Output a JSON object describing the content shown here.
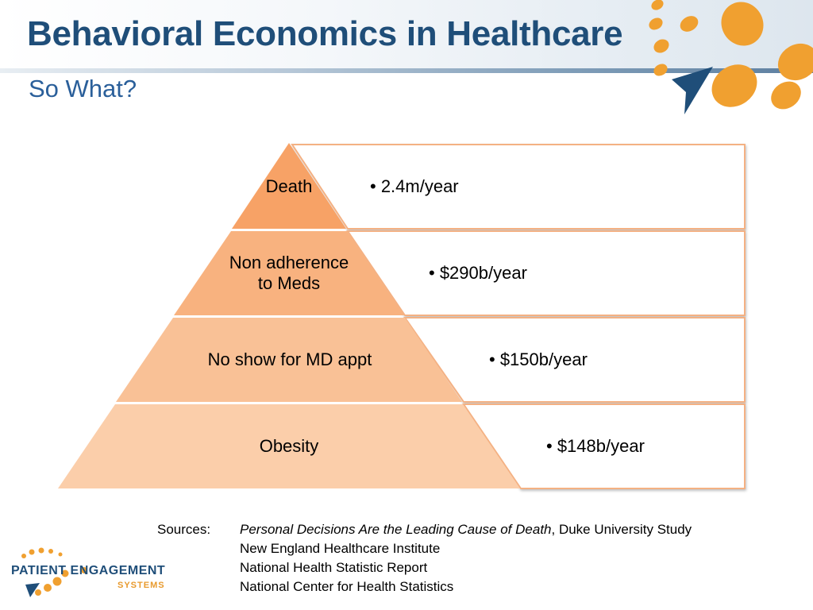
{
  "slide": {
    "title": "Behavioral Economics in Healthcare",
    "subtitle": "So What?"
  },
  "pyramid": {
    "tiers": [
      {
        "label": "Death",
        "value": "• 2.4m/year",
        "color": "#f7a266"
      },
      {
        "label": "Non adherence\nto Meds",
        "value": "• $290b/year",
        "color": "#f8b27f"
      },
      {
        "label": "No show for MD appt",
        "value": "• $150b/year",
        "color": "#f9c196"
      },
      {
        "label": "Obesity",
        "value": "• $148b/year",
        "color": "#fbceaa"
      }
    ],
    "box_border_color": "#f4b183"
  },
  "sources": {
    "label": "Sources:",
    "lines": [
      {
        "italic": "Personal Decisions Are the Leading Cause of Death",
        "rest": ", Duke University Study"
      },
      {
        "italic": "",
        "rest": "New England Healthcare Institute"
      },
      {
        "italic": "",
        "rest": "National Health Statistic Report"
      },
      {
        "italic": "",
        "rest": "National Center for Health Statistics"
      }
    ]
  },
  "logo": {
    "main": "PATIENT ENGAGEMENT",
    "sub": "SYSTEMS"
  },
  "colors": {
    "title": "#1f4e79",
    "subtitle": "#2a5f9a",
    "accent_orange": "#f0a030",
    "accent_navy": "#1f4e79"
  }
}
